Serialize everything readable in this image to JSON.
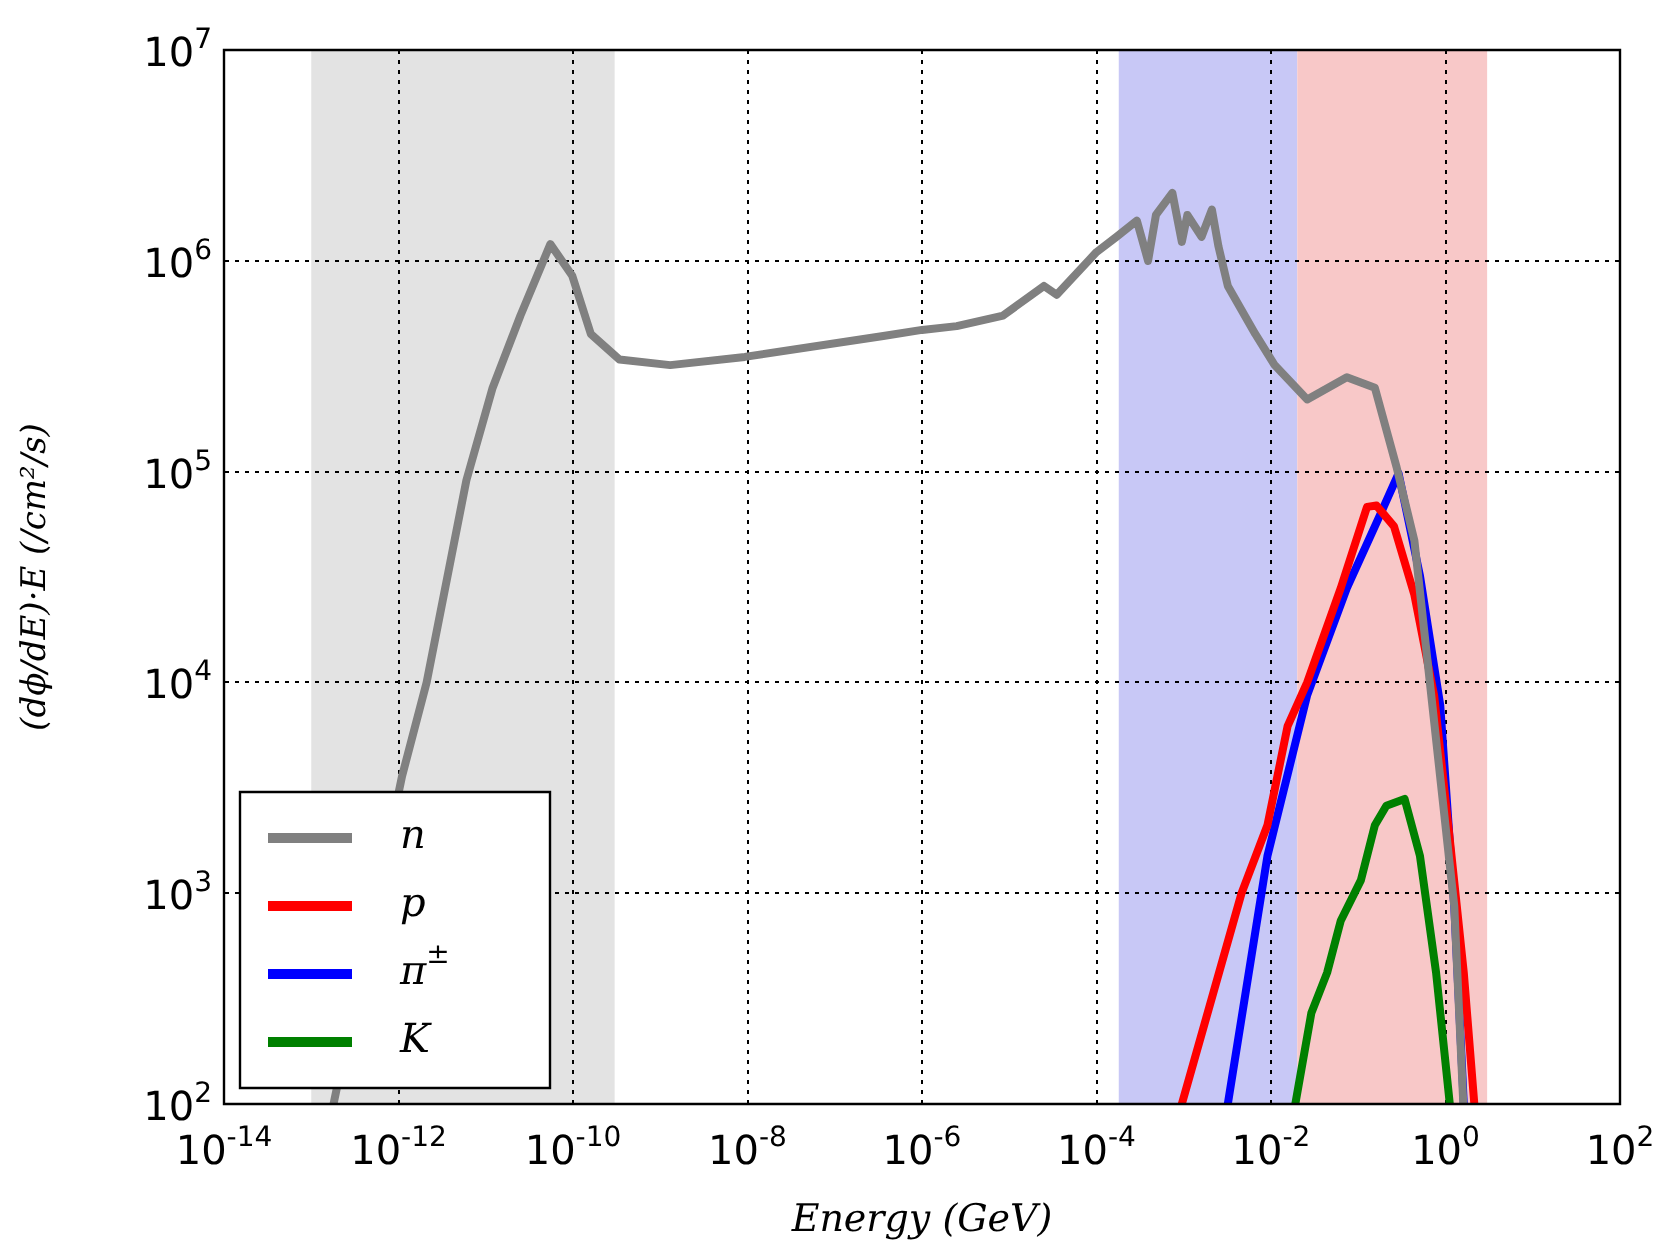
{
  "chart_data": {
    "type": "line",
    "xlabel": "Energy (GeV)",
    "ylabel": "(dϕ/dE)·E (/cm²/s)",
    "log": "xy",
    "xlim": [
      1e-14,
      100
    ],
    "ylim": [
      100,
      10000000
    ],
    "xticks": [
      {
        "value": 1e-14,
        "label": "10$^{-14}$"
      },
      {
        "value": 1e-12,
        "label": "10$^{-12}$"
      },
      {
        "value": 1e-10,
        "label": "10$^{-10}$"
      },
      {
        "value": 1e-08,
        "label": "10$^{-8}$"
      },
      {
        "value": 1e-06,
        "label": "10$^{-6}$"
      },
      {
        "value": 0.0001,
        "label": "10$^{-4}$"
      },
      {
        "value": 0.01,
        "label": "10$^{-2}$"
      },
      {
        "value": 1,
        "label": "10$^{0}$"
      },
      {
        "value": 100,
        "label": "10$^{2}$"
      }
    ],
    "yticks": [
      {
        "value": 100,
        "label": "10$^{2}$"
      },
      {
        "value": 1000,
        "label": "10$^{3}$"
      },
      {
        "value": 10000,
        "label": "10$^{4}$"
      },
      {
        "value": 100000,
        "label": "10$^{5}$"
      },
      {
        "value": 1000000,
        "label": "10$^{6}$"
      },
      {
        "value": 10000000,
        "label": "10$^{7}$"
      }
    ],
    "grid": true,
    "legend": "bottom left",
    "marker": "none",
    "line_style": "solid",
    "bands": [
      {
        "axis": "x",
        "from": 1e-13,
        "to": 3e-10,
        "color": "#e3e3e3"
      },
      {
        "axis": "x",
        "from": 0.00018,
        "to": 0.02,
        "color": "#c8c8f6"
      },
      {
        "axis": "x",
        "from": 0.02,
        "to": 3,
        "color": "#f8c8c8"
      }
    ],
    "series": [
      {
        "name": "n",
        "color": "#808080",
        "x": [
          1.8e-13,
          1.1e-12,
          2.1e-12,
          6e-12,
          1.2e-11,
          2.5e-11,
          5.5e-11,
          9.8e-11,
          1.6e-10,
          3.4e-10,
          1.3e-09,
          9.3e-09,
          3.6e-07,
          1e-06,
          2.5e-06,
          8.5e-06,
          2.5e-05,
          3.5e-05,
          0.0001,
          0.00017,
          0.00029,
          0.00039,
          0.00048,
          0.00074,
          0.00095,
          0.0011,
          0.0016,
          0.0021,
          0.0025,
          0.0032,
          0.0066,
          0.011,
          0.026,
          0.074,
          0.155,
          0.275,
          0.44,
          1.26,
          1.6
        ],
        "values": [
          100,
          3600,
          10000,
          91000,
          250000,
          550000,
          1200000,
          850000,
          450000,
          340000,
          320000,
          350000,
          440000,
          470000,
          490000,
          550000,
          760000,
          690000,
          1100000,
          1300000,
          1550000,
          1000000,
          1650000,
          2100000,
          1230000,
          1650000,
          1300000,
          1750000,
          1170000,
          760000,
          450000,
          320000,
          220000,
          280000,
          250000,
          105000,
          47000,
          870,
          100
        ]
      },
      {
        "name": "p",
        "color": "#ff0000",
        "x": [
          0.00095,
          0.0046,
          0.0091,
          0.0155,
          0.026,
          0.063,
          0.126,
          0.162,
          0.257,
          0.44,
          0.74,
          1.12,
          1.62,
          2.14
        ],
        "values": [
          100,
          1000,
          2100,
          6200,
          10000,
          28000,
          68000,
          69000,
          55000,
          26000,
          8700,
          1800,
          420,
          100
        ]
      },
      {
        "name": "π$^{±}$",
        "color": "#0000ff",
        "x": [
          0.0032,
          0.0091,
          0.026,
          0.074,
          0.18,
          0.29,
          0.51,
          0.87,
          1.26,
          1.62
        ],
        "values": [
          100,
          1500,
          8700,
          28000,
          63000,
          98000,
          32000,
          7800,
          870,
          100
        ]
      },
      {
        "name": "K",
        "color": "#008000",
        "x": [
          0.019,
          0.029,
          0.044,
          0.063,
          0.107,
          0.155,
          0.21,
          0.34,
          0.51,
          0.78,
          1.12
        ],
        "values": [
          100,
          270,
          420,
          740,
          1150,
          2100,
          2600,
          2800,
          1500,
          420,
          100
        ]
      }
    ]
  }
}
